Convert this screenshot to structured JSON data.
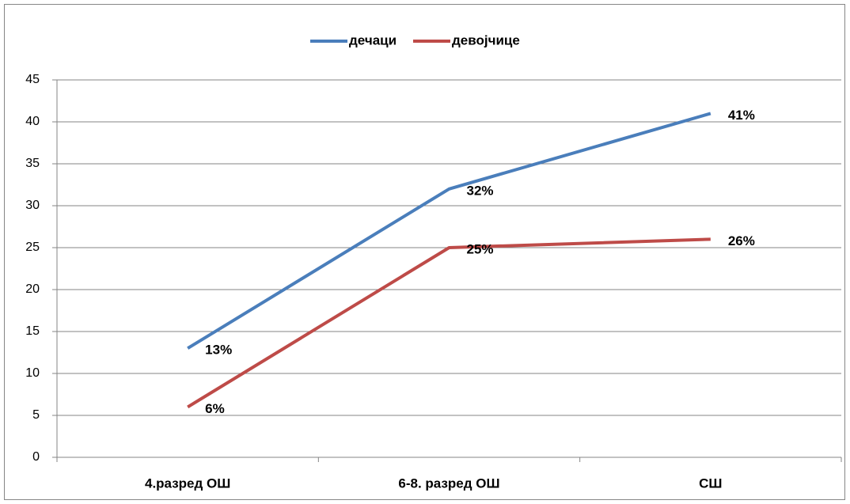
{
  "chart_data": {
    "type": "line",
    "categories": [
      "4.разред ОШ",
      "6-8. разред ОШ",
      "СШ"
    ],
    "series": [
      {
        "name": "дечаци",
        "color": "#4a7ebb",
        "values": [
          13,
          32,
          41
        ],
        "value_labels": [
          "13%",
          "32%",
          "41%"
        ]
      },
      {
        "name": "девојчице",
        "color": "#be4b48",
        "values": [
          6,
          25,
          26
        ],
        "value_labels": [
          "6%",
          "25%",
          "26%"
        ]
      }
    ],
    "ylim": [
      0,
      45
    ],
    "yticks": [
      0,
      5,
      10,
      15,
      20,
      25,
      30,
      35,
      40,
      45
    ],
    "grid": true,
    "legend": "top"
  }
}
